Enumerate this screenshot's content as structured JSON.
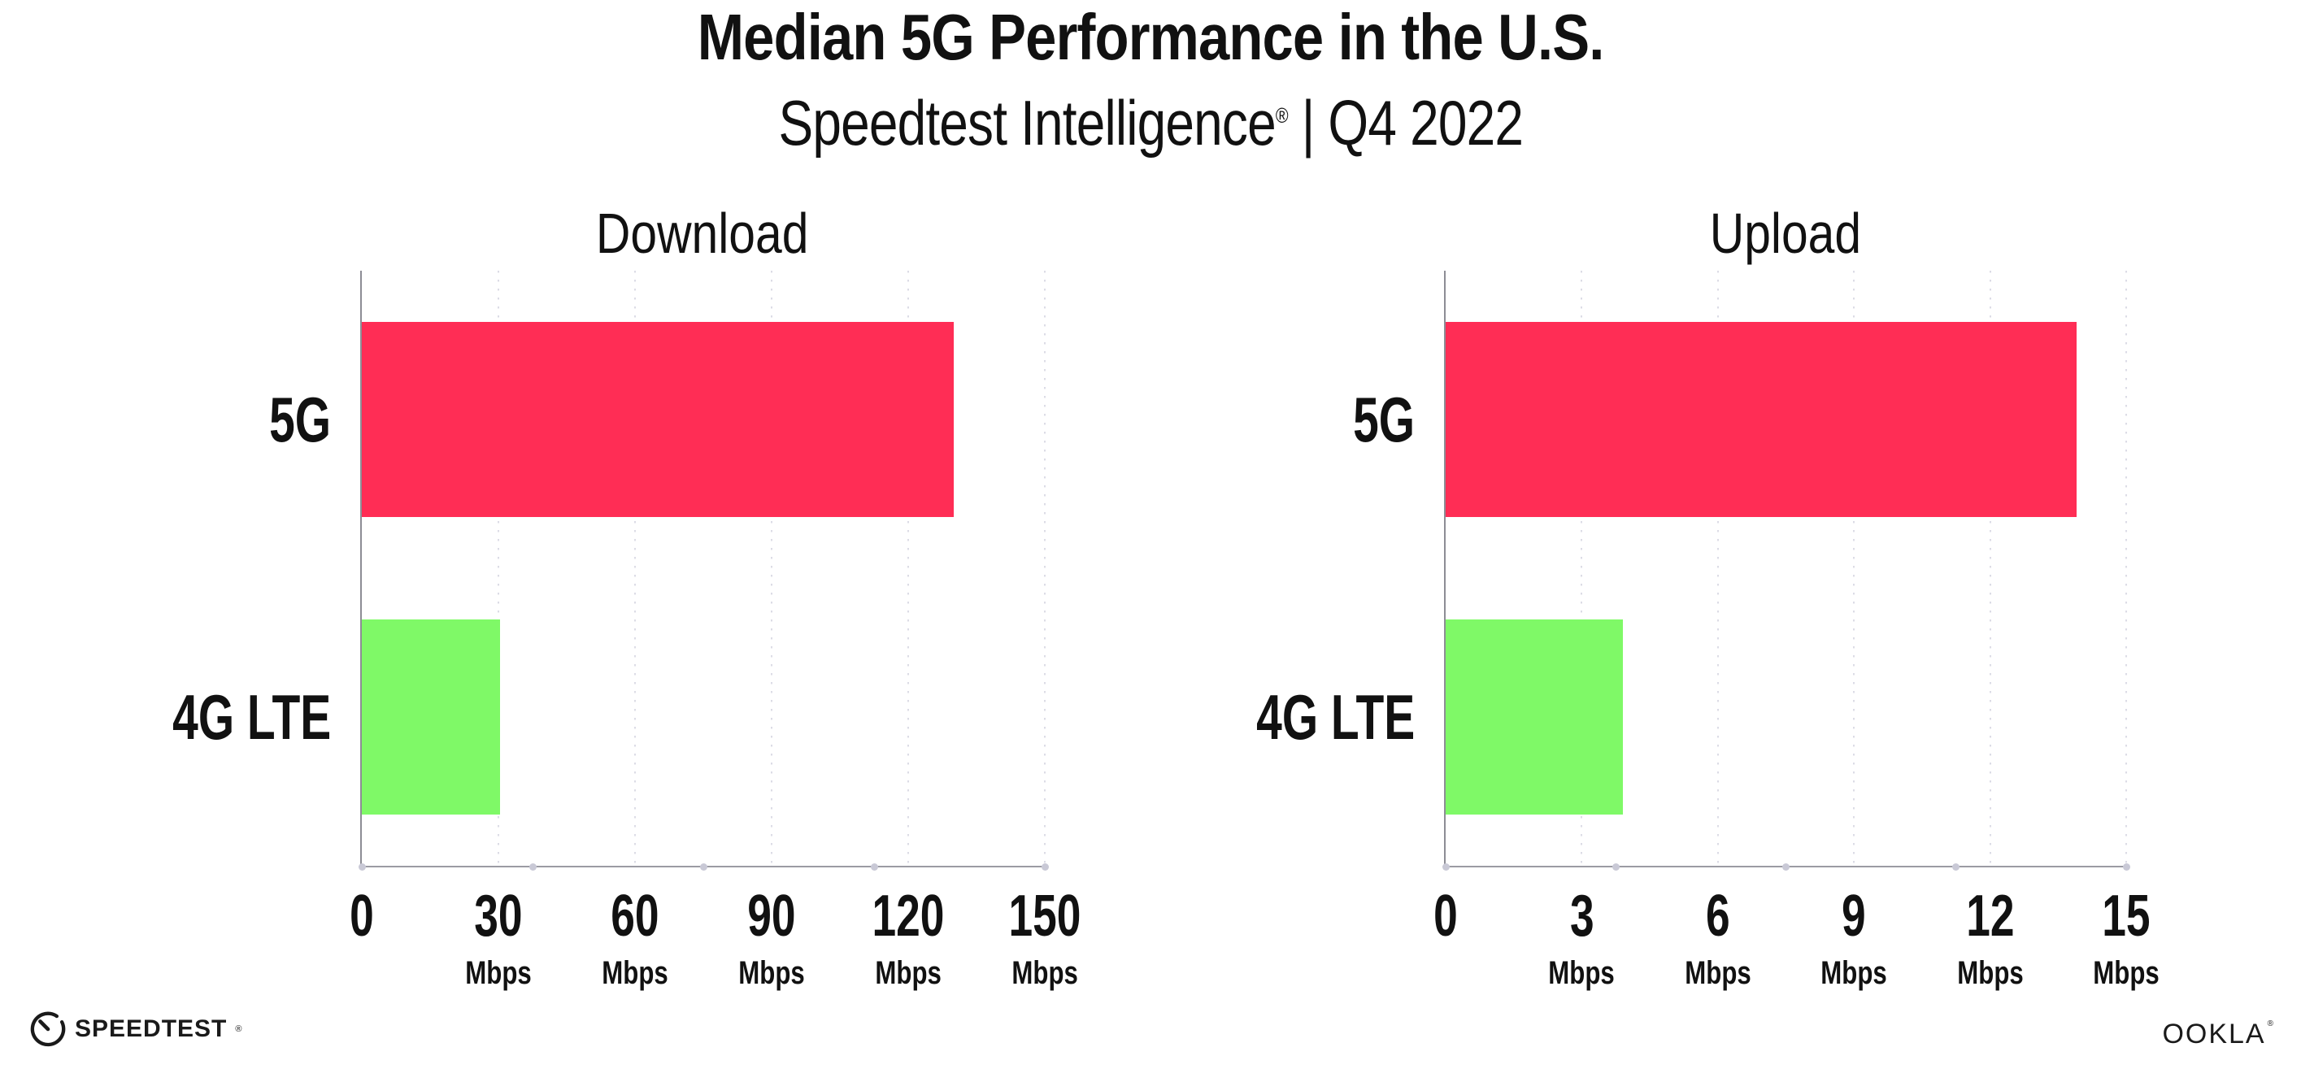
{
  "page": {
    "title": "Median 5G Performance in the U.S.",
    "subtitle": {
      "brand": "Speedtest Intelligence",
      "reg": "®",
      "rest": " | Q4 2022"
    }
  },
  "colors": {
    "bar_5g": "#FF2D55",
    "bar_4g_lte": "#7FF967",
    "axis_line": "#9b9ba3",
    "gridline": "#dcdce6",
    "axis_tick_dot": "#c9c9d6",
    "text": "#111111"
  },
  "chart_data": [
    {
      "type": "bar",
      "orientation": "horizontal",
      "title": "Download",
      "categories": [
        "5G",
        "4G LTE"
      ],
      "values": [
        130,
        30.3
      ],
      "unit": "Mbps",
      "xlim": [
        0,
        150
      ],
      "xticks": [
        0,
        30,
        60,
        90,
        120,
        150
      ],
      "grid": "vertical-dotted",
      "legend": "none",
      "bar_colors": [
        "#FF2D55",
        "#7FF967"
      ]
    },
    {
      "type": "bar",
      "orientation": "horizontal",
      "title": "Upload",
      "categories": [
        "5G",
        "4G LTE"
      ],
      "values": [
        13.9,
        3.9
      ],
      "unit": "Mbps",
      "xlim": [
        0,
        15
      ],
      "xticks": [
        0,
        3,
        6,
        9,
        12,
        15
      ],
      "grid": "vertical-dotted",
      "legend": "none",
      "bar_colors": [
        "#FF2D55",
        "#7FF967"
      ]
    }
  ],
  "footer": {
    "speedtest_label": "SPEEDTEST",
    "speedtest_reg": "®",
    "ookla_label": "OOKLA",
    "ookla_reg": "®"
  }
}
